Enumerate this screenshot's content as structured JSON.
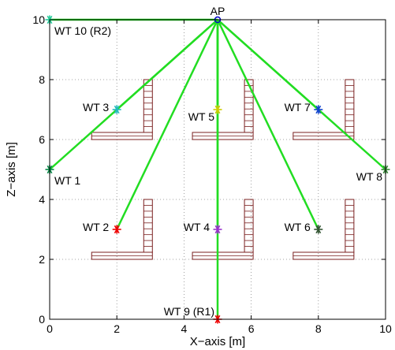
{
  "chart_data": {
    "type": "scatter",
    "xlabel": "X−axis [m]",
    "ylabel": "Z−axis [m]",
    "xlim": [
      0,
      10
    ],
    "ylim": [
      0,
      10
    ],
    "x_ticks": [
      0,
      2,
      4,
      6,
      8,
      10
    ],
    "y_ticks": [
      0,
      2,
      4,
      6,
      8,
      10
    ],
    "grid": "dotted",
    "access_point": {
      "label": "AP",
      "x": 5,
      "y": 10,
      "color": "#0000cc"
    },
    "link_color": "#22dd22",
    "links": [
      {
        "x": 0,
        "y": 10
      },
      {
        "x": 2,
        "y": 7
      },
      {
        "x": 0,
        "y": 5
      },
      {
        "x": 2,
        "y": 3
      },
      {
        "x": 5,
        "y": 7
      },
      {
        "x": 5,
        "y": 3
      },
      {
        "x": 5,
        "y": 0
      },
      {
        "x": 8,
        "y": 7
      },
      {
        "x": 8,
        "y": 3
      },
      {
        "x": 10,
        "y": 5
      }
    ],
    "terminals": [
      {
        "label": "WT 1",
        "x": 0,
        "y": 5,
        "color": "#008844",
        "label_pos": "below-right"
      },
      {
        "label": "WT 2",
        "x": 2,
        "y": 3,
        "color": "#ee0000",
        "label_pos": "left"
      },
      {
        "label": "WT 3",
        "x": 2,
        "y": 7,
        "color": "#22bbbb",
        "label_pos": "left"
      },
      {
        "label": "WT 4",
        "x": 5,
        "y": 3,
        "color": "#9933cc",
        "label_pos": "left"
      },
      {
        "label": "WT 5",
        "x": 5,
        "y": 7,
        "color": "#cccc00",
        "label_pos": "below-left"
      },
      {
        "label": "WT 6",
        "x": 8,
        "y": 3,
        "color": "#335533",
        "label_pos": "left"
      },
      {
        "label": "WT 7",
        "x": 8,
        "y": 7,
        "color": "#1144cc",
        "label_pos": "left"
      },
      {
        "label": "WT 8",
        "x": 10,
        "y": 5,
        "color": "#338833",
        "label_pos": "below-left"
      },
      {
        "label": "WT 9 (R1)",
        "x": 5,
        "y": 0,
        "color": "#ee0000",
        "label_pos": "above-left"
      },
      {
        "label": "WT 10 (R2)",
        "x": 0,
        "y": 10,
        "color": "#22cc99",
        "label_pos": "below-right"
      }
    ],
    "obstacle_color": "#7a1f1f",
    "obstacles": [
      {
        "corner_x": 2.8,
        "corner_y": 6.0,
        "h_start_x": 1.25,
        "v_top_y": 8.0
      },
      {
        "corner_x": 5.8,
        "corner_y": 6.0,
        "h_start_x": 4.25,
        "v_top_y": 8.0
      },
      {
        "corner_x": 8.8,
        "corner_y": 6.0,
        "h_start_x": 7.25,
        "v_top_y": 8.0
      },
      {
        "corner_x": 2.8,
        "corner_y": 2.0,
        "h_start_x": 1.25,
        "v_top_y": 4.0
      },
      {
        "corner_x": 5.8,
        "corner_y": 2.0,
        "h_start_x": 4.25,
        "v_top_y": 4.0
      },
      {
        "corner_x": 8.8,
        "corner_y": 2.0,
        "h_start_x": 7.25,
        "v_top_y": 4.0
      }
    ]
  }
}
